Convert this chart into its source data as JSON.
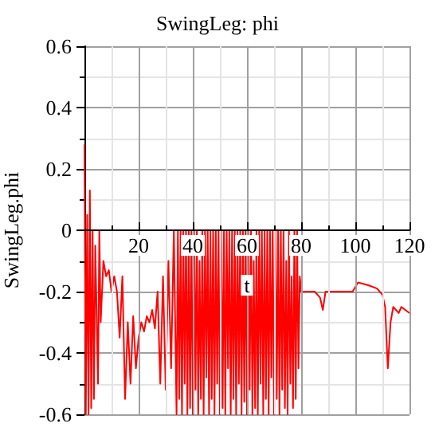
{
  "chart_data": {
    "type": "line",
    "title": "SwingLeg: phi",
    "xlabel": "t",
    "ylabel": "SwingLeg.phi",
    "xlim": [
      0,
      120
    ],
    "xticks": [
      20,
      40,
      60,
      80,
      100,
      120
    ],
    "ylim": [
      -0.6,
      0.6
    ],
    "yticks": [
      -0.6,
      -0.4,
      -0.2,
      0,
      0.2,
      0.4,
      0.6
    ],
    "grid": true,
    "marker": "none",
    "line_style": "solid",
    "series": [
      {
        "color": "#ff0000",
        "x": [
          0,
          0.5,
          1,
          1.5,
          2,
          2.5,
          3,
          3.5,
          4,
          5,
          5.5,
          6,
          7,
          8,
          9,
          10,
          11,
          12,
          13,
          14,
          15,
          16,
          17,
          18,
          19,
          20,
          21,
          22,
          23,
          24,
          25,
          26,
          27,
          28,
          29,
          30,
          31,
          32,
          33,
          34,
          34.5,
          35,
          35.5,
          36,
          36.5,
          37,
          37.5,
          38,
          38.5,
          39,
          39.5,
          40,
          40.5,
          41,
          41.5,
          42,
          42.5,
          43,
          43.5,
          44,
          44.5,
          45,
          45.5,
          46,
          46.5,
          47,
          47.5,
          48,
          48.5,
          49,
          49.5,
          50,
          50.5,
          51,
          51.5,
          52,
          52.5,
          53,
          53.5,
          54,
          54.5,
          55,
          55.5,
          56,
          56.5,
          57,
          57.5,
          58,
          58.5,
          59,
          59.5,
          60,
          60.5,
          61,
          61.5,
          62,
          62.5,
          63,
          63.5,
          64,
          64.5,
          65,
          65.5,
          66,
          66.5,
          67,
          67.5,
          68,
          68.5,
          69,
          69.5,
          70,
          70.5,
          71,
          71.5,
          72,
          72.5,
          73,
          73.5,
          74,
          74.5,
          75,
          75.5,
          76,
          76.5,
          77,
          77.5,
          78,
          78.5,
          79,
          79.5,
          80,
          85,
          87,
          88,
          89,
          95,
          99,
          101,
          105,
          108,
          110,
          111,
          112,
          113,
          114,
          116,
          117,
          120
        ],
        "values": [
          0.28,
          -0.6,
          0.05,
          -0.6,
          0.13,
          -0.58,
          0,
          -0.55,
          -0.05,
          -0.5,
          0,
          -0.3,
          -0.1,
          -0.15,
          -0.13,
          -0.2,
          -0.15,
          -0.2,
          -0.35,
          -0.15,
          -0.55,
          -0.3,
          -0.5,
          -0.28,
          -0.45,
          -0.35,
          -0.3,
          -0.33,
          -0.28,
          -0.3,
          -0.26,
          -0.32,
          -0.2,
          -0.5,
          -0.15,
          -0.52,
          -0.1,
          -0.45,
          0,
          -0.6,
          0,
          -0.55,
          0,
          -0.6,
          0,
          -0.5,
          0,
          -0.6,
          0,
          -0.58,
          0,
          -0.6,
          0,
          -0.52,
          0,
          -0.6,
          -0.1,
          -0.55,
          0,
          -0.6,
          0,
          -0.48,
          0,
          -0.6,
          0,
          -0.55,
          0,
          -0.6,
          0,
          -0.5,
          0,
          -0.6,
          0,
          -0.58,
          0,
          -0.6,
          0,
          -0.45,
          0,
          -0.6,
          0,
          -0.55,
          0,
          -0.6,
          0,
          -0.5,
          0,
          -0.6,
          0,
          -0.56,
          0,
          -0.6,
          0,
          -0.52,
          0,
          -0.6,
          -0.1,
          -0.58,
          0,
          -0.6,
          0,
          -0.5,
          0,
          -0.6,
          0,
          -0.55,
          0,
          -0.6,
          0,
          -0.48,
          0,
          -0.6,
          0,
          -0.55,
          0,
          -0.6,
          0,
          -0.52,
          0,
          -0.58,
          -0.1,
          -0.6,
          0,
          -0.5,
          -0.15,
          -0.58,
          0,
          -0.55,
          0,
          -0.45,
          -0.15,
          -0.2,
          -0.2,
          -0.22,
          -0.26,
          -0.2,
          -0.2,
          -0.2,
          -0.17,
          -0.18,
          -0.19,
          -0.21,
          -0.25,
          -0.45,
          -0.3,
          -0.25,
          -0.27,
          -0.25,
          -0.27
        ]
      }
    ]
  }
}
